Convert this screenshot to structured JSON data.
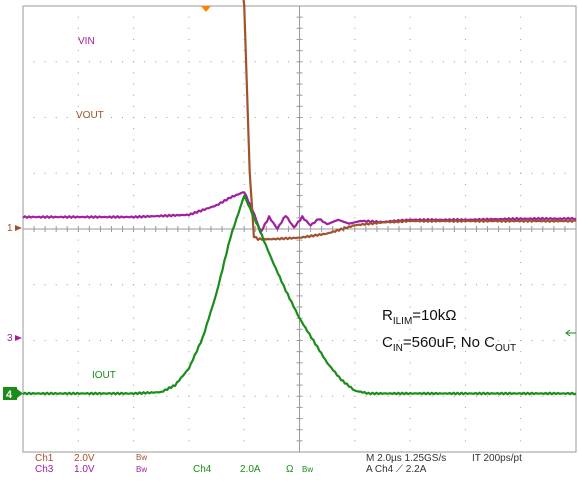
{
  "chart_data": {
    "type": "line",
    "title": "",
    "xlabel": "",
    "ylabel": "",
    "divisions": {
      "x": 10,
      "y": 8
    },
    "grid": true,
    "time_per_div_us": 2.0,
    "x_unit": "us",
    "x_range_us": [
      -8,
      12
    ],
    "series": [
      {
        "name": "VIN",
        "channel": "Ch3",
        "color": "#a020a0",
        "unit": "V",
        "volts_per_div": 1.0,
        "x": [
          -8,
          -4,
          -2,
          -1,
          -0.5,
          0,
          0.3,
          0.6,
          0.9,
          1.2,
          1.5,
          1.8,
          2.1,
          2.4,
          2.7,
          3.0,
          3.4,
          3.8,
          4.2,
          5,
          6,
          8,
          10,
          12
        ],
        "values": [
          2.17,
          2.17,
          2.21,
          2.38,
          2.52,
          2.62,
          2.3,
          1.9,
          2.17,
          1.96,
          2.2,
          1.98,
          2.17,
          2.02,
          2.14,
          2.04,
          2.12,
          2.05,
          2.1,
          2.08,
          2.12,
          2.12,
          2.14,
          2.14
        ]
      },
      {
        "name": "VOUT",
        "channel": "Ch1",
        "color": "#a0522d",
        "unit": "V",
        "volts_per_div": 2.0,
        "x": [
          -8,
          -4,
          -2,
          -1,
          -0.5,
          -0.2,
          0,
          0.1,
          0.2,
          0.35,
          0.5,
          1,
          2,
          3,
          4,
          5,
          6,
          8,
          12
        ],
        "values": [
          11.5,
          11.3,
          11.1,
          10.8,
          10.4,
          9.6,
          8.0,
          5.0,
          2.0,
          -0.3,
          -0.4,
          -0.4,
          -0.35,
          -0.2,
          0.1,
          0.2,
          0.25,
          0.25,
          0.25
        ]
      },
      {
        "name": "IOUT",
        "channel": "Ch4",
        "color": "#1a8c1a",
        "unit": "A",
        "amps_per_div": 2.0,
        "x": [
          -8,
          -4,
          -3,
          -2.5,
          -2,
          -1.5,
          -1,
          -0.5,
          0,
          0.5,
          1,
          1.5,
          2,
          2.5,
          3,
          3.5,
          4,
          4.5,
          5,
          6,
          8,
          12
        ],
        "values": [
          0,
          0,
          0.05,
          0.3,
          0.9,
          2.0,
          3.6,
          5.6,
          7.1,
          6.0,
          4.8,
          3.7,
          2.7,
          1.9,
          1.1,
          0.5,
          0.1,
          0.0,
          0,
          0,
          0,
          0
        ]
      }
    ]
  },
  "markers": {
    "ch1": "1",
    "ch3": "3",
    "ch4": "4"
  },
  "annotation": {
    "r_pre": "R",
    "r_sub": "ILIM",
    "r_post": "=10kΩ",
    "c_pre": "C",
    "c_sub": "IN",
    "c_mid": "=560uF, No C",
    "c_sub2": "OUT"
  },
  "status_bar": {
    "ch1_name": "Ch1",
    "ch1_scale": "2.0V",
    "ch1_bw": "Bw",
    "ch3_name": "Ch3",
    "ch3_scale": "1.0V",
    "ch3_bw": "Bw",
    "ch4_name": "Ch4",
    "ch4_scale": "2.0A",
    "ch4_ohm": "Ω",
    "ch4_bw": "Bw",
    "timebase": "M 2.0µs 1.25GS/s",
    "record": "IT 200ps/pt",
    "trigger": "A  Ch4  ⟋  2.2A"
  }
}
